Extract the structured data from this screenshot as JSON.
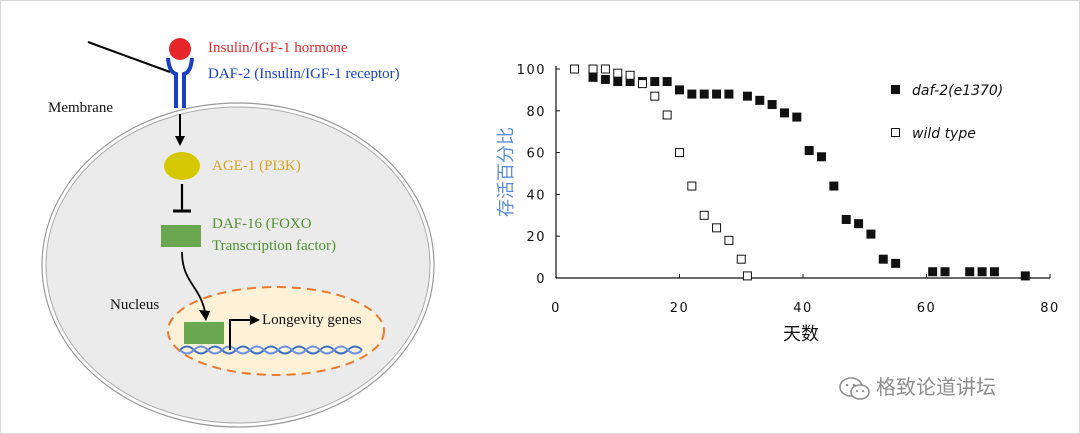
{
  "pathway": {
    "hormone_label": "Insulin/IGF-1 hormone",
    "receptor_label": "DAF-2 (Insulin/IGF-1 receptor)",
    "membrane_label": "Membrane",
    "age1_label": "AGE-1 (PI3K)",
    "daf16_line1": "DAF-16 (FOXO",
    "daf16_line2": "Transcription factor)",
    "nucleus_label": "Nucleus",
    "genes_label": "Longevity genes"
  },
  "chart_data": {
    "type": "scatter",
    "xlabel": "天数",
    "ylabel": "存活百分比",
    "xlim": [
      0,
      80
    ],
    "ylim": [
      0,
      100
    ],
    "x_ticks": [
      "0",
      "20",
      "40",
      "60",
      "80"
    ],
    "y_ticks": [
      "0",
      "20",
      "40",
      "60",
      "80",
      "100"
    ],
    "grid": false,
    "legend_position": "top-right",
    "series": [
      {
        "name": "daf-2(e1370)",
        "marker": "filled-square",
        "color": "#111111",
        "points": [
          [
            6,
            96
          ],
          [
            8,
            95
          ],
          [
            10,
            94
          ],
          [
            12,
            94
          ],
          [
            14,
            94
          ],
          [
            16,
            94
          ],
          [
            18,
            94
          ],
          [
            20,
            90
          ],
          [
            22,
            88
          ],
          [
            24,
            88
          ],
          [
            26,
            88
          ],
          [
            28,
            88
          ],
          [
            31,
            87
          ],
          [
            33,
            85
          ],
          [
            35,
            83
          ],
          [
            37,
            79
          ],
          [
            39,
            77
          ],
          [
            41,
            61
          ],
          [
            43,
            58
          ],
          [
            45,
            44
          ],
          [
            47,
            28
          ],
          [
            49,
            26
          ],
          [
            51,
            21
          ],
          [
            53,
            9
          ],
          [
            55,
            7
          ],
          [
            61,
            3
          ],
          [
            63,
            3
          ],
          [
            67,
            3
          ],
          [
            69,
            3
          ],
          [
            71,
            3
          ],
          [
            76,
            1
          ]
        ]
      },
      {
        "name": "wild type",
        "marker": "open-square",
        "color": "#111111",
        "points": [
          [
            3,
            100
          ],
          [
            6,
            100
          ],
          [
            8,
            100
          ],
          [
            10,
            98
          ],
          [
            12,
            97
          ],
          [
            14,
            93
          ],
          [
            16,
            87
          ],
          [
            18,
            78
          ],
          [
            20,
            60
          ],
          [
            22,
            44
          ],
          [
            24,
            30
          ],
          [
            26,
            24
          ],
          [
            28,
            18
          ],
          [
            30,
            9
          ],
          [
            31,
            1
          ]
        ]
      }
    ]
  },
  "watermark": {
    "text": "格致论道讲坛"
  }
}
